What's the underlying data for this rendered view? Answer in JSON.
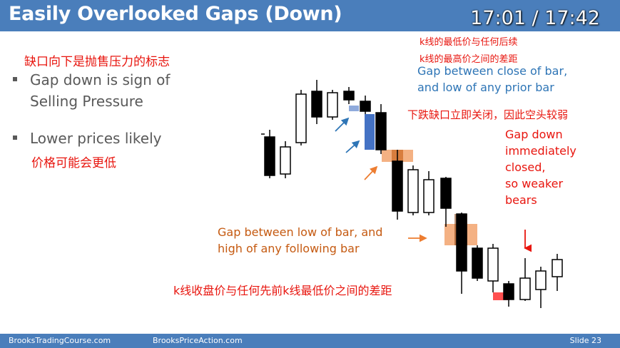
{
  "slide": {
    "title": "Easily Overlooked Gaps (Down)",
    "timer": "17:01 / 17:42",
    "slide_number": "Slide  23"
  },
  "footer": {
    "left_link": "BrooksTradingCourse.com",
    "middle_link": "BrooksPriceAction.com"
  },
  "bullets": {
    "cn_heading": "缺口向下是抛售压力的标志",
    "item1_line1": "Gap down is sign of",
    "item1_line2": "Selling Pressure",
    "item2_line1": "Lower prices likely",
    "item2_cn": "价格可能会更低"
  },
  "annotations": {
    "cn_top_line1": "k线的最低价与任何后续",
    "cn_top_line2": "k线的最高价之间的差距",
    "blue_line1": "Gap between close of bar,",
    "blue_line2": "and low of any prior bar",
    "cn_right": "下跌缺口立即关闭，因此空头较弱",
    "red_line1": "Gap down",
    "red_line2": "immediately",
    "red_line3": "closed,",
    "red_line4": "so weaker",
    "red_line5": "bears",
    "orange_line1": "Gap between low of bar, and",
    "orange_line2": "high of any following bar",
    "cn_bottom": "k线收盘价与任何先前k线最低价之间的差距"
  },
  "colors": {
    "title_bar": "#4a7ebb",
    "red_text": "#e8150e",
    "blue_text": "#2e75b6",
    "orange_text": "#c55a11",
    "body_text": "#595959",
    "blue_gap": "#4472c4",
    "orange_gap": "#e9a96e",
    "red_gap": "#ff0000"
  }
}
